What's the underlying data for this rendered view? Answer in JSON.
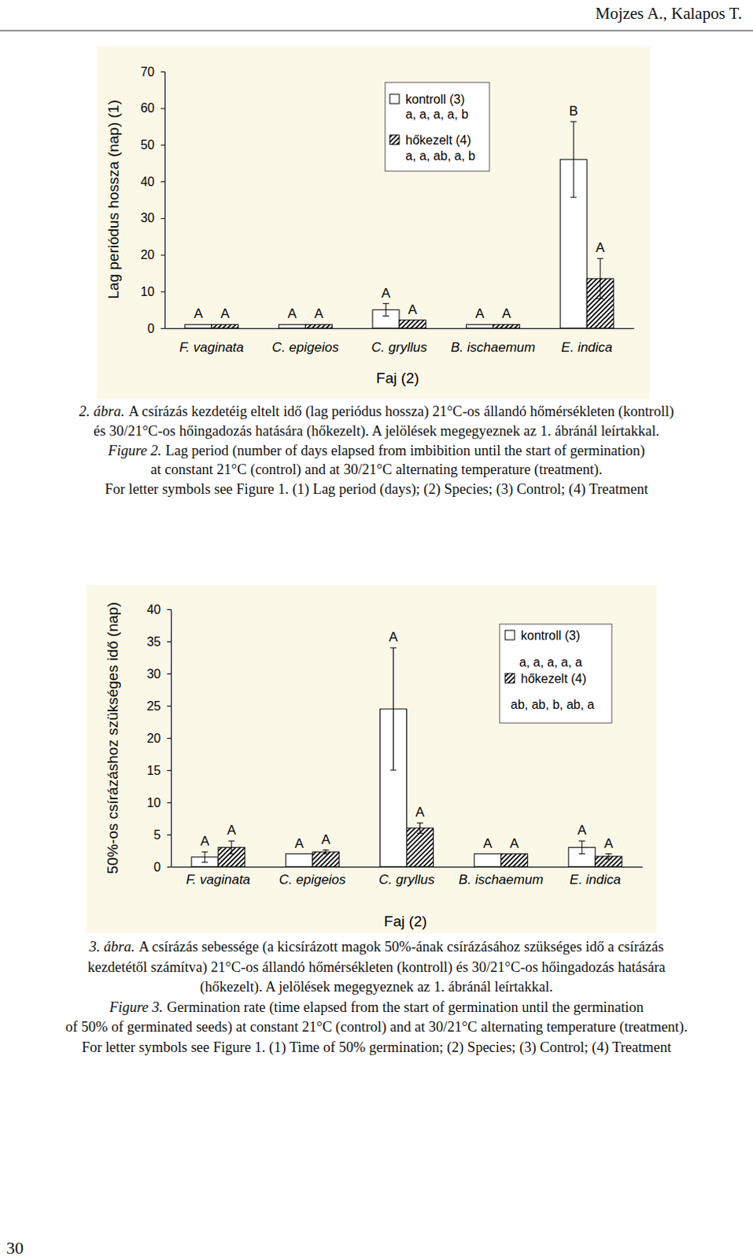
{
  "header": "Mojzes A., Kalapos T.",
  "chart_data": [
    {
      "type": "bar",
      "y_label": "Lag periódus hossza (nap) (1)",
      "x_label": "Faj (2)",
      "categories": [
        "F. vaginata",
        "C. epigeios",
        "C. gryllus",
        "B. ischaemum",
        "E. indica"
      ],
      "series": [
        {
          "name": "kontroll (3)",
          "color": "#ffffff",
          "group_letters": "a, a, a, a, b",
          "values": [
            1,
            1,
            5,
            1,
            46
          ],
          "errors": [
            null,
            null,
            1.7,
            null,
            10.3
          ],
          "letters": [
            "A",
            "A",
            "A",
            "A",
            "B"
          ]
        },
        {
          "name": "hőkezelt (4)",
          "color": "#000000",
          "group_letters": "a, a, ab, a, b",
          "values": [
            1,
            1,
            2.2,
            1,
            13.5
          ],
          "errors": [
            null,
            null,
            null,
            null,
            5.5
          ],
          "letters": [
            "A",
            "A",
            "A",
            "A",
            "A"
          ]
        }
      ],
      "ylim": [
        0,
        70
      ],
      "yticks": [
        0,
        10,
        20,
        30,
        40,
        50,
        60,
        70
      ],
      "grid": false,
      "legend": "top-right"
    },
    {
      "type": "bar",
      "y_label": "50%-os csírázáshoz szükséges idő (nap)",
      "x_label": "Faj (2)",
      "categories": [
        "F. vaginata",
        "C. epigeios",
        "C. gryllus",
        "B. ischaemum",
        "E. indica"
      ],
      "series": [
        {
          "name": "kontroll (3)",
          "color": "#ffffff",
          "group_letters": "a, a, a, a, a",
          "values": [
            1.5,
            2,
            24.5,
            2,
            3
          ],
          "errors": [
            0.8,
            null,
            9.5,
            null,
            1
          ],
          "letters": [
            "A",
            "A",
            "A",
            "A",
            "A"
          ]
        },
        {
          "name": "hőkezelt (4)",
          "color": "#000000",
          "group_letters": "ab, ab, b, ab, a",
          "values": [
            3,
            2.3,
            6,
            2,
            1.6
          ],
          "errors": [
            1,
            0.3,
            0.8,
            null,
            0.4
          ],
          "letters": [
            "A",
            "A",
            "A",
            "A",
            "A"
          ]
        }
      ],
      "ylim": [
        0,
        40
      ],
      "yticks": [
        0,
        5,
        10,
        15,
        20,
        25,
        30,
        35,
        40
      ],
      "grid": false,
      "legend": "top-right"
    }
  ],
  "captions": [
    {
      "lines": [
        {
          "lead": "2. ábra.",
          "text": "A csírázás kezdetéig eltelt idő (lag periódus hossza) 21°C-os állandó hőmérsékleten (kontroll)"
        },
        {
          "text": "és 30/21°C-os hőingadozás hatására (hőkezelt). A jelölések megegyeznek az 1. ábránál leírtakkal."
        },
        {
          "lead": "Figure 2.",
          "text": "Lag period (number of days elapsed from imbibition until the start of germination)"
        },
        {
          "text": "at constant 21°C (control) and at 30/21°C alternating temperature (treatment)."
        },
        {
          "text": "For letter symbols see Figure 1. (1) Lag period (days); (2) Species; (3) Control; (4) Treatment"
        }
      ]
    },
    {
      "lines": [
        {
          "lead": "3. ábra.",
          "text": "A csírázás sebessége (a kicsírázott magok 50%-ának csírázásához szükséges idő a csírázás"
        },
        {
          "text": "kezdetétől számítva) 21°C-os állandó hőmérsékleten (kontroll) és 30/21°C-os hőingadozás hatására"
        },
        {
          "text": "(hőkezelt). A jelölések megegyeznek az 1. ábránál leírtakkal."
        },
        {
          "lead": "Figure 3.",
          "text": "Germination rate (time elapsed from the start of germination until the germination"
        },
        {
          "text": "of 50% of germinated seeds) at constant 21°C (control) and at 30/21°C alternating temperature (treatment)."
        },
        {
          "text": "For letter symbols see Figure 1. (1) Time of 50% germination; (2) Species; (3) Control; (4) Treatment"
        }
      ]
    }
  ],
  "page_number": "30"
}
